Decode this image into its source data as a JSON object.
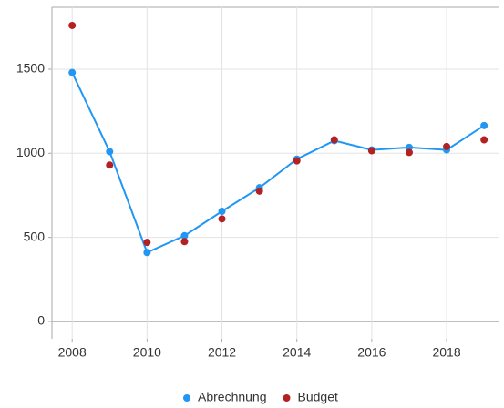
{
  "chart_data": {
    "type": "line",
    "x": [
      2008,
      2009,
      2010,
      2011,
      2012,
      2013,
      2014,
      2015,
      2016,
      2017,
      2018,
      2019
    ],
    "series": [
      {
        "name": "Abrechnung",
        "color": "#2196f3",
        "mode": "line",
        "values": [
          1480,
          1010,
          410,
          510,
          655,
          795,
          965,
          1075,
          1020,
          1035,
          1020,
          1165
        ]
      },
      {
        "name": "Budget",
        "color": "#b22222",
        "mode": "points",
        "values": [
          1760,
          930,
          470,
          475,
          610,
          775,
          955,
          1080,
          1015,
          1005,
          1040,
          1080
        ]
      }
    ],
    "xlim": [
      2007.46,
      2019.41
    ],
    "xticks": [
      2008,
      2010,
      2012,
      2014,
      2016,
      2018
    ],
    "ylim": [
      -103,
      1868
    ],
    "yticks": [
      0,
      500,
      1000,
      1500
    ],
    "grid": true,
    "legend": "bottom"
  }
}
